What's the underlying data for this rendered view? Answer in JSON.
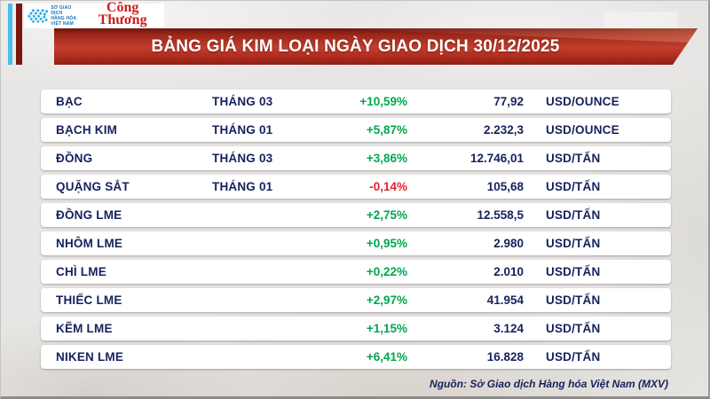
{
  "header": {
    "mxv_logo": {
      "org_lines": [
        "SỞ GIAO DỊCH",
        "HÀNG HÓA",
        "VIỆT NAM"
      ],
      "brand_color": "#2aa9e0"
    },
    "congthuong_logo": {
      "text": "Công Thương",
      "color": "#ce1c1c"
    },
    "banner_title": "BẢNG GIÁ KIM LOẠI NGÀY GIAO DỊCH 30/12/2025"
  },
  "footer": {
    "source": "Nguồn: Sở Giao dịch Hàng hóa Việt Nam (MXV)"
  },
  "colors": {
    "positive": "#00a651",
    "negative": "#e8222a",
    "text_navy": "#17215e",
    "banner_red": "#b5331f",
    "stripe_cyan": "#45c0ea",
    "stripe_dark_red": "#7b150d"
  },
  "chart_data": {
    "type": "table",
    "title": "BẢNG GIÁ KIM LOẠI NGÀY GIAO DỊCH 30/12/2025",
    "columns": [
      "commodity",
      "contract_month",
      "change_percent",
      "price",
      "unit"
    ],
    "rows": [
      {
        "name": "BẠC",
        "month": "THÁNG 03",
        "change": "+10,59%",
        "direction": "up",
        "price": "77,92",
        "unit": "USD/OUNCE"
      },
      {
        "name": "BẠCH KIM",
        "month": "THÁNG 01",
        "change": "+5,87%",
        "direction": "up",
        "price": "2.232,3",
        "unit": "USD/OUNCE"
      },
      {
        "name": "ĐỒNG",
        "month": "THÁNG 03",
        "change": "+3,86%",
        "direction": "up",
        "price": "12.746,01",
        "unit": "USD/TẤN"
      },
      {
        "name": "QUẶNG SẮT",
        "month": "THÁNG 01",
        "change": "-0,14%",
        "direction": "down",
        "price": "105,68",
        "unit": "USD/TẤN"
      },
      {
        "name": "ĐỒNG LME",
        "month": "",
        "change": "+2,75%",
        "direction": "up",
        "price": "12.558,5",
        "unit": "USD/TẤN"
      },
      {
        "name": "NHÔM LME",
        "month": "",
        "change": "+0,95%",
        "direction": "up",
        "price": "2.980",
        "unit": "USD/TẤN"
      },
      {
        "name": "CHÌ LME",
        "month": "",
        "change": "+0,22%",
        "direction": "up",
        "price": "2.010",
        "unit": "USD/TẤN"
      },
      {
        "name": "THIẾC LME",
        "month": "",
        "change": "+2,97%",
        "direction": "up",
        "price": "41.954",
        "unit": "USD/TẤN"
      },
      {
        "name": "KẼM LME",
        "month": "",
        "change": "+1,15%",
        "direction": "up",
        "price": "3.124",
        "unit": "USD/TẤN"
      },
      {
        "name": "NIKEN LME",
        "month": "",
        "change": "+6,41%",
        "direction": "up",
        "price": "16.828",
        "unit": "USD/TẤN"
      }
    ]
  }
}
